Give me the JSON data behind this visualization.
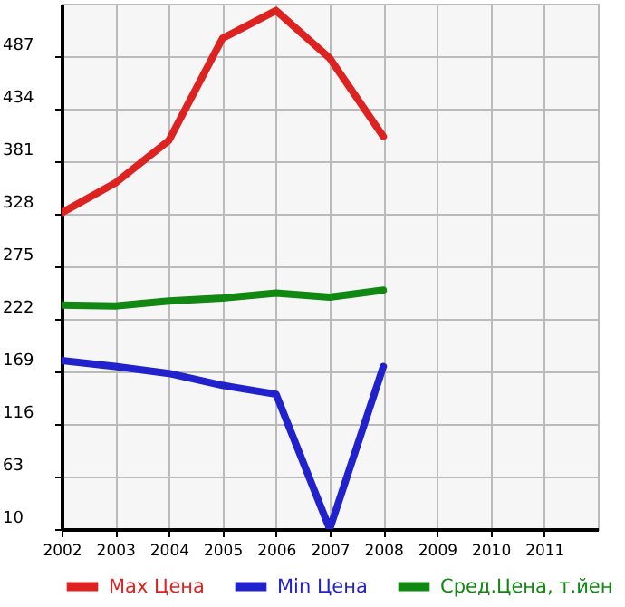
{
  "chart_data": {
    "type": "line",
    "x": [
      2002,
      2003,
      2004,
      2005,
      2006,
      2007,
      2008
    ],
    "series": [
      {
        "name": "Max Цена",
        "color": "#dd2222",
        "values": [
          329,
          359,
          402,
          505,
          533,
          485,
          406
        ]
      },
      {
        "name": "Min Цена",
        "color": "#2222cc",
        "values": [
          180,
          174,
          167,
          155,
          146,
          10,
          174
        ]
      },
      {
        "name": "Сред.Цена, т.йен",
        "color": "#118811",
        "values": [
          236,
          235,
          240,
          243,
          248,
          244,
          251
        ]
      }
    ],
    "xlim": [
      2002,
      2012
    ],
    "xticks": [
      2002,
      2003,
      2004,
      2005,
      2006,
      2007,
      2008,
      2009,
      2010,
      2011
    ],
    "ylim": [
      10,
      540
    ],
    "yticks": [
      10,
      63,
      116,
      169,
      222,
      275,
      328,
      381,
      434,
      487
    ],
    "grid": true,
    "legend": "bottom",
    "line_style": "solid"
  }
}
